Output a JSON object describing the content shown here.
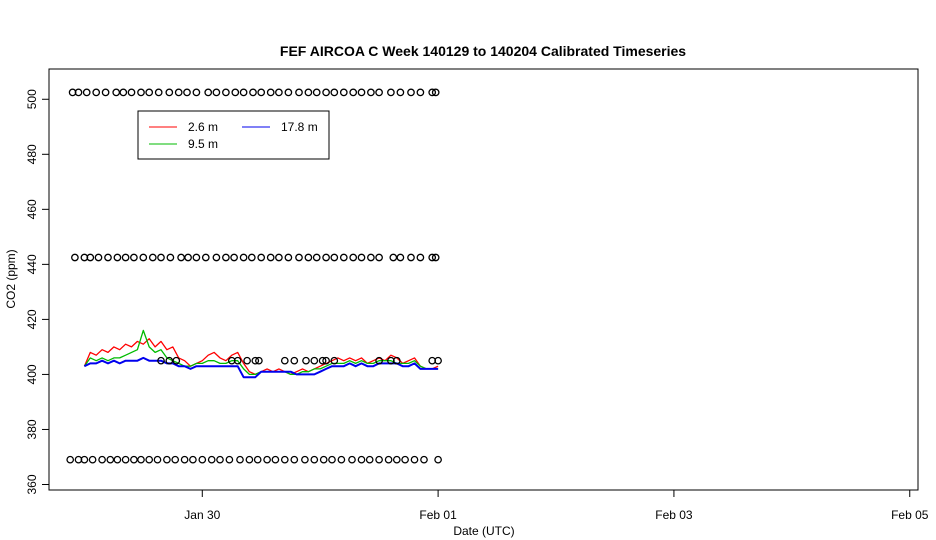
{
  "chart_data": {
    "type": "line",
    "title": "FEF AIRCOA C  Week 140129 to 140204  Calibrated Timeseries",
    "xlabel": "Date (UTC)",
    "ylabel": "CO2 (ppm)",
    "x_ticks": [
      {
        "value": 1.0,
        "label": "Jan 30"
      },
      {
        "value": 3.0,
        "label": "Feb 01"
      },
      {
        "value": 5.0,
        "label": "Feb 03"
      },
      {
        "value": 7.0,
        "label": "Feb 05"
      }
    ],
    "y_ticks": [
      360,
      380,
      400,
      420,
      440,
      460,
      480,
      500
    ],
    "xlim": [
      -0.3,
      7.07
    ],
    "ylim": [
      358,
      511
    ],
    "x_units": "days since 2014-01-29 00:00 UTC",
    "legend": {
      "position": "top-left",
      "entries": [
        "2.6 m",
        "9.5 m",
        "17.8 m"
      ]
    },
    "series": [
      {
        "name": "2.6 m",
        "color": "#ff0000",
        "x": [
          0.0,
          0.05,
          0.1,
          0.15,
          0.2,
          0.25,
          0.3,
          0.35,
          0.4,
          0.45,
          0.5,
          0.55,
          0.6,
          0.65,
          0.7,
          0.75,
          0.8,
          0.85,
          0.9,
          0.95,
          1.0,
          1.05,
          1.1,
          1.15,
          1.2,
          1.25,
          1.3,
          1.35,
          1.4,
          1.45,
          1.5,
          1.55,
          1.6,
          1.65,
          1.7,
          1.75,
          1.8,
          1.85,
          1.9,
          1.95,
          2.0,
          2.05,
          2.1,
          2.15,
          2.2,
          2.25,
          2.3,
          2.35,
          2.4,
          2.45,
          2.5,
          2.55,
          2.6,
          2.65,
          2.7,
          2.75,
          2.8,
          2.85,
          2.9,
          2.95,
          3.0
        ],
        "y": [
          403,
          408,
          407,
          409,
          408,
          410,
          409,
          411,
          410,
          412,
          411,
          413,
          410,
          412,
          409,
          410,
          406,
          405,
          403,
          404,
          405,
          407,
          408,
          406,
          405,
          407,
          408,
          404,
          401,
          400,
          401,
          402,
          401,
          402,
          401,
          400,
          401,
          402,
          401,
          402,
          403,
          404,
          405,
          406,
          405,
          406,
          405,
          406,
          404,
          405,
          406,
          405,
          407,
          406,
          404,
          405,
          406,
          403,
          402,
          402,
          403
        ]
      },
      {
        "name": "9.5 m",
        "color": "#00bb00",
        "x": [
          0.0,
          0.05,
          0.1,
          0.15,
          0.2,
          0.25,
          0.3,
          0.35,
          0.4,
          0.45,
          0.5,
          0.55,
          0.6,
          0.65,
          0.7,
          0.75,
          0.8,
          0.85,
          0.9,
          0.95,
          1.0,
          1.05,
          1.1,
          1.15,
          1.2,
          1.25,
          1.3,
          1.35,
          1.4,
          1.45,
          1.5,
          1.55,
          1.6,
          1.65,
          1.7,
          1.75,
          1.8,
          1.85,
          1.9,
          1.95,
          2.0,
          2.05,
          2.1,
          2.15,
          2.2,
          2.25,
          2.3,
          2.35,
          2.4,
          2.45,
          2.5,
          2.55,
          2.6,
          2.65,
          2.7,
          2.75,
          2.8,
          2.85,
          2.9,
          2.95,
          3.0
        ],
        "y": [
          403,
          406,
          405,
          406,
          405,
          406,
          406,
          407,
          408,
          409,
          416,
          410,
          408,
          409,
          406,
          405,
          404,
          403,
          403,
          404,
          404,
          405,
          405,
          404,
          404,
          405,
          405,
          402,
          400,
          400,
          401,
          401,
          401,
          401,
          401,
          400,
          400,
          401,
          401,
          402,
          402,
          403,
          404,
          404,
          404,
          405,
          404,
          405,
          404,
          404,
          405,
          405,
          405,
          404,
          404,
          404,
          405,
          403,
          402,
          402,
          402
        ]
      },
      {
        "name": "17.8 m",
        "color": "#0000ee",
        "x": [
          0.0,
          0.05,
          0.1,
          0.15,
          0.2,
          0.25,
          0.3,
          0.35,
          0.4,
          0.45,
          0.5,
          0.55,
          0.6,
          0.65,
          0.7,
          0.75,
          0.8,
          0.85,
          0.9,
          0.95,
          1.0,
          1.05,
          1.1,
          1.15,
          1.2,
          1.25,
          1.3,
          1.35,
          1.4,
          1.45,
          1.5,
          1.55,
          1.6,
          1.65,
          1.7,
          1.75,
          1.8,
          1.85,
          1.9,
          1.95,
          2.0,
          2.05,
          2.1,
          2.15,
          2.2,
          2.25,
          2.3,
          2.35,
          2.4,
          2.45,
          2.5,
          2.55,
          2.6,
          2.65,
          2.7,
          2.75,
          2.8,
          2.85,
          2.9,
          2.95,
          3.0
        ],
        "y": [
          403,
          404,
          404,
          405,
          404,
          405,
          404,
          405,
          405,
          405,
          406,
          405,
          405,
          405,
          404,
          404,
          403,
          403,
          402,
          403,
          403,
          403,
          403,
          403,
          403,
          403,
          403,
          399,
          399,
          399,
          401,
          401,
          401,
          401,
          401,
          401,
          400,
          400,
          400,
          400,
          401,
          402,
          403,
          403,
          403,
          404,
          403,
          404,
          403,
          403,
          404,
          404,
          404,
          404,
          403,
          403,
          404,
          402,
          402,
          402,
          402
        ]
      }
    ],
    "reference_points": [
      {
        "y": 502.5,
        "x": [
          -0.1,
          -0.05,
          0.02,
          0.1,
          0.18,
          0.27,
          0.33,
          0.4,
          0.48,
          0.55,
          0.63,
          0.72,
          0.8,
          0.87,
          0.95,
          1.05,
          1.12,
          1.2,
          1.28,
          1.35,
          1.43,
          1.5,
          1.58,
          1.65,
          1.73,
          1.82,
          1.9,
          1.97,
          2.05,
          2.12,
          2.2,
          2.28,
          2.35,
          2.43,
          2.5,
          2.6,
          2.68,
          2.77,
          2.85,
          2.95,
          2.98
        ]
      },
      {
        "y": 442.5,
        "x": [
          -0.08,
          0.0,
          0.05,
          0.12,
          0.2,
          0.28,
          0.35,
          0.42,
          0.5,
          0.58,
          0.65,
          0.73,
          0.82,
          0.88,
          0.95,
          1.03,
          1.12,
          1.2,
          1.27,
          1.35,
          1.42,
          1.5,
          1.58,
          1.65,
          1.73,
          1.82,
          1.9,
          1.97,
          2.05,
          2.12,
          2.2,
          2.28,
          2.35,
          2.43,
          2.5,
          2.62,
          2.68,
          2.77,
          2.85,
          2.95,
          2.98
        ]
      },
      {
        "y": 405,
        "x": [
          0.65,
          0.72,
          0.78,
          1.25,
          1.3,
          1.38,
          1.45,
          1.48,
          1.7,
          1.78,
          1.88,
          1.95,
          2.02,
          2.05,
          2.12,
          2.5,
          2.6,
          2.65,
          2.95,
          3.0
        ]
      },
      {
        "y": 369,
        "x": [
          -0.12,
          -0.05,
          0.0,
          0.07,
          0.15,
          0.22,
          0.28,
          0.35,
          0.42,
          0.48,
          0.55,
          0.62,
          0.7,
          0.77,
          0.85,
          0.92,
          1.0,
          1.08,
          1.15,
          1.23,
          1.32,
          1.4,
          1.47,
          1.55,
          1.62,
          1.7,
          1.78,
          1.87,
          1.95,
          2.03,
          2.1,
          2.18,
          2.27,
          2.35,
          2.42,
          2.5,
          2.58,
          2.65,
          2.72,
          2.8,
          2.88,
          3.0
        ]
      }
    ]
  }
}
